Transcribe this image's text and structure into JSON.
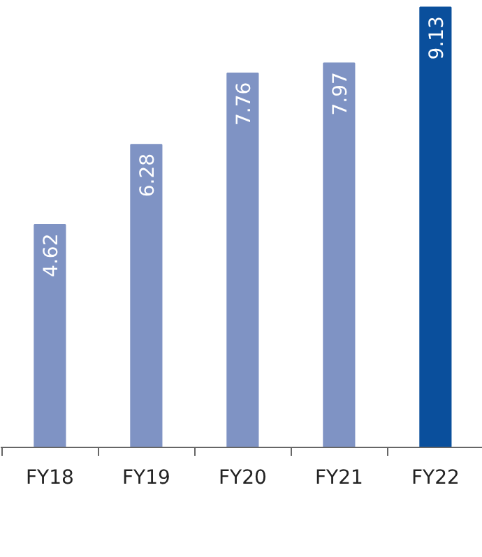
{
  "chart_data": {
    "type": "bar",
    "categories": [
      "FY18",
      "FY19",
      "FY20",
      "FY21",
      "FY22"
    ],
    "values": [
      4.62,
      6.28,
      7.76,
      7.97,
      9.13
    ],
    "colors": [
      "#7f93c4",
      "#7f93c4",
      "#7f93c4",
      "#7f93c4",
      "#0a4f9c"
    ],
    "data_labels": true
  }
}
